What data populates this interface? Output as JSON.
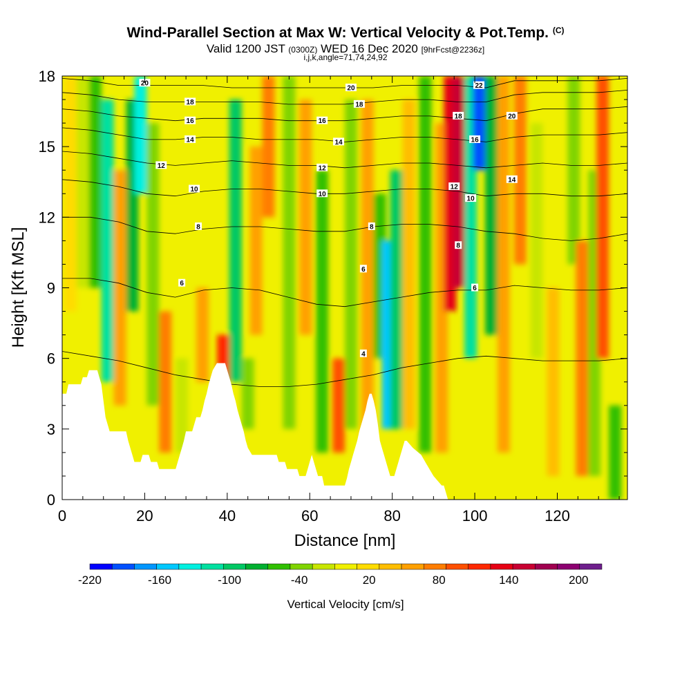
{
  "title": {
    "main": "Wind-Parallel Section at Max W: Vertical Velocity & Pot.Temp.",
    "copyright": "(C)",
    "valid_prefix": "Valid 1200 JST",
    "valid_zulu": "(0300Z)",
    "valid_date": "WED 16 Dec 2020",
    "forecast": "[9hrFcst@2236z]",
    "params": "i,j,k,angle=71,74,24,92"
  },
  "chart_data": {
    "type": "heatmap",
    "xlabel": "Distance [nm]",
    "ylabel": "Height [Kft MSL]",
    "xlim": [
      0,
      137
    ],
    "ylim": [
      0,
      18
    ],
    "x_ticks": [
      0,
      20,
      40,
      60,
      80,
      100,
      120
    ],
    "y_ticks": [
      0,
      3,
      6,
      9,
      12,
      15,
      18
    ],
    "colorbar": {
      "label": "Vertical Velocity [cm/s]",
      "range": [
        -220,
        220
      ],
      "tick_values": [
        -220,
        -160,
        -100,
        -40,
        20,
        80,
        140,
        200
      ],
      "tick_labels": [
        "-220",
        "-160",
        "-100",
        "-40",
        "20",
        "80",
        "140",
        "200"
      ],
      "colors": [
        "#0000ff",
        "#0050ff",
        "#0096ff",
        "#00c8ff",
        "#00f0e0",
        "#00e0a0",
        "#00c864",
        "#00b030",
        "#30c000",
        "#80d400",
        "#c8e600",
        "#f0f000",
        "#ffdc00",
        "#ffbe00",
        "#ffa000",
        "#ff7d00",
        "#ff5000",
        "#ff2800",
        "#e60014",
        "#c80032",
        "#a00050",
        "#8c0070",
        "#6e1e8c"
      ]
    },
    "vertical_velocity_columns": [
      {
        "x": 2,
        "w": 25,
        "top": 18,
        "bottom": 8
      },
      {
        "x": 5,
        "w": -20,
        "top": 18,
        "bottom": 9
      },
      {
        "x": 8,
        "w": -60,
        "top": 18,
        "bottom": 9
      },
      {
        "x": 11,
        "w": -110,
        "top": 17,
        "bottom": 5
      },
      {
        "x": 14,
        "w": 50,
        "top": 14,
        "bottom": 4
      },
      {
        "x": 17,
        "w": -70,
        "top": 17,
        "bottom": 8
      },
      {
        "x": 19,
        "w": -130,
        "top": 18,
        "bottom": 13
      },
      {
        "x": 22,
        "w": -40,
        "top": 16,
        "bottom": 4
      },
      {
        "x": 25,
        "w": 70,
        "top": 8,
        "bottom": 2
      },
      {
        "x": 29,
        "w": -20,
        "top": 6,
        "bottom": 2
      },
      {
        "x": 34,
        "w": 60,
        "top": 9,
        "bottom": 5
      },
      {
        "x": 39,
        "w": 120,
        "top": 7,
        "bottom": 5
      },
      {
        "x": 42,
        "w": -90,
        "top": 17,
        "bottom": 5
      },
      {
        "x": 45,
        "w": -40,
        "top": 6,
        "bottom": 3
      },
      {
        "x": 47,
        "w": 60,
        "top": 15,
        "bottom": 7
      },
      {
        "x": 50,
        "w": 80,
        "top": 18,
        "bottom": 12
      },
      {
        "x": 55,
        "w": -30,
        "top": 18,
        "bottom": 3
      },
      {
        "x": 59,
        "w": 60,
        "top": 17,
        "bottom": 7
      },
      {
        "x": 63,
        "w": -60,
        "top": 14,
        "bottom": 2
      },
      {
        "x": 67,
        "w": 90,
        "top": 6,
        "bottom": 2
      },
      {
        "x": 70,
        "w": -30,
        "top": 17,
        "bottom": 3
      },
      {
        "x": 74,
        "w": 50,
        "top": 17,
        "bottom": 2
      },
      {
        "x": 77,
        "w": -50,
        "top": 13,
        "bottom": 6
      },
      {
        "x": 79,
        "w": -160,
        "top": 11,
        "bottom": 3
      },
      {
        "x": 81,
        "w": -100,
        "top": 14,
        "bottom": 3
      },
      {
        "x": 84,
        "w": 40,
        "top": 17,
        "bottom": 3
      },
      {
        "x": 88,
        "w": -50,
        "top": 18,
        "bottom": 2
      },
      {
        "x": 92,
        "w": 60,
        "top": 16,
        "bottom": 2
      },
      {
        "x": 94,
        "w": 130,
        "top": 18,
        "bottom": 8
      },
      {
        "x": 96,
        "w": 160,
        "top": 18,
        "bottom": 9
      },
      {
        "x": 99,
        "w": -120,
        "top": 18,
        "bottom": 6
      },
      {
        "x": 101,
        "w": -200,
        "top": 18,
        "bottom": 14
      },
      {
        "x": 104,
        "w": -70,
        "top": 18,
        "bottom": 7
      },
      {
        "x": 107,
        "w": 50,
        "top": 18,
        "bottom": 2
      },
      {
        "x": 111,
        "w": 80,
        "top": 18,
        "bottom": 10
      },
      {
        "x": 115,
        "w": -20,
        "top": 16,
        "bottom": 6
      },
      {
        "x": 119,
        "w": 40,
        "top": 9,
        "bottom": 1
      },
      {
        "x": 124,
        "w": -40,
        "top": 18,
        "bottom": 10
      },
      {
        "x": 126,
        "w": 80,
        "top": 11,
        "bottom": 1
      },
      {
        "x": 129,
        "w": -30,
        "top": 14,
        "bottom": 1
      },
      {
        "x": 131,
        "w": 100,
        "top": 18,
        "bottom": 6
      },
      {
        "x": 134,
        "w": -60,
        "top": 4,
        "bottom": 0
      }
    ],
    "terrain": [
      [
        0,
        4.5
      ],
      [
        1,
        4.5
      ],
      [
        1.5,
        4.9
      ],
      [
        4.5,
        4.9
      ],
      [
        5,
        5.2
      ],
      [
        6,
        5.2
      ],
      [
        6.5,
        5.5
      ],
      [
        8.5,
        5.5
      ],
      [
        9,
        5.2
      ],
      [
        9.5,
        4.9
      ],
      [
        10,
        4.2
      ],
      [
        10.5,
        3.5
      ],
      [
        11,
        3.2
      ],
      [
        11.5,
        2.9
      ],
      [
        15.5,
        2.9
      ],
      [
        16,
        2.5
      ],
      [
        16.5,
        2.2
      ],
      [
        17,
        1.9
      ],
      [
        17.5,
        1.6
      ],
      [
        19,
        1.6
      ],
      [
        19.5,
        1.9
      ],
      [
        21,
        1.9
      ],
      [
        21.5,
        1.6
      ],
      [
        23,
        1.6
      ],
      [
        23.5,
        1.3
      ],
      [
        27.5,
        1.3
      ],
      [
        28,
        1.6
      ],
      [
        28.5,
        1.9
      ],
      [
        29,
        2.2
      ],
      [
        29.5,
        2.5
      ],
      [
        30,
        2.9
      ],
      [
        31.5,
        2.9
      ],
      [
        32,
        3.2
      ],
      [
        32.5,
        3.5
      ],
      [
        33.5,
        3.5
      ],
      [
        34,
        3.8
      ],
      [
        34.5,
        4.2
      ],
      [
        35,
        4.5
      ],
      [
        35.5,
        4.9
      ],
      [
        36,
        5.2
      ],
      [
        36.5,
        5.5
      ],
      [
        37.5,
        5.8
      ],
      [
        39.5,
        5.8
      ],
      [
        40,
        5.5
      ],
      [
        40.5,
        5.2
      ],
      [
        41,
        4.9
      ],
      [
        41.5,
        4.5
      ],
      [
        42,
        4.2
      ],
      [
        42.5,
        3.8
      ],
      [
        43,
        3.5
      ],
      [
        43.5,
        3.2
      ],
      [
        44,
        2.9
      ],
      [
        44.5,
        2.5
      ],
      [
        45,
        2.2
      ],
      [
        46,
        1.9
      ],
      [
        52,
        1.9
      ],
      [
        52.5,
        1.6
      ],
      [
        54,
        1.6
      ],
      [
        54.5,
        1.3
      ],
      [
        57,
        1.3
      ],
      [
        57.5,
        1.0
      ],
      [
        59,
        1.0
      ],
      [
        59.5,
        1.3
      ],
      [
        60,
        1.6
      ],
      [
        60.5,
        1.9
      ],
      [
        61,
        1.6
      ],
      [
        61.5,
        1.3
      ],
      [
        62,
        1.0
      ],
      [
        63,
        1.0
      ],
      [
        63.5,
        0.6
      ],
      [
        68.5,
        0.6
      ],
      [
        69,
        0.9
      ],
      [
        69.5,
        1.3
      ],
      [
        70,
        1.6
      ],
      [
        70.5,
        1.9
      ],
      [
        71,
        2.2
      ],
      [
        71.5,
        2.5
      ],
      [
        72,
        2.9
      ],
      [
        72.5,
        3.2
      ],
      [
        73,
        3.5
      ],
      [
        73.5,
        3.8
      ],
      [
        74,
        4.2
      ],
      [
        74.5,
        4.5
      ],
      [
        75,
        4.5
      ],
      [
        75.5,
        4.2
      ],
      [
        76,
        3.8
      ],
      [
        76.5,
        3.2
      ],
      [
        77,
        2.5
      ],
      [
        77.5,
        2.2
      ],
      [
        78,
        1.9
      ],
      [
        78.5,
        1.6
      ],
      [
        79,
        1.3
      ],
      [
        79.5,
        1.0
      ],
      [
        80.5,
        1.0
      ],
      [
        81,
        1.3
      ],
      [
        81.5,
        1.6
      ],
      [
        82,
        1.9
      ],
      [
        82.5,
        2.2
      ],
      [
        83,
        2.5
      ],
      [
        83.5,
        2.5
      ],
      [
        85,
        2.2
      ],
      [
        87,
        1.9
      ],
      [
        88,
        1.6
      ],
      [
        89,
        1.3
      ],
      [
        90,
        1.0
      ],
      [
        91,
        0.8
      ],
      [
        92,
        0.6
      ],
      [
        92.5,
        0.6
      ],
      [
        93,
        0.3
      ],
      [
        93.5,
        0
      ],
      [
        137,
        0
      ]
    ],
    "potential_temperature_contours": [
      {
        "label": "4",
        "y": [
          6.3,
          6.1,
          5.9,
          5.6,
          5.3,
          5.1,
          4.9,
          4.8,
          4.8,
          4.9,
          5.1,
          5.3,
          5.6,
          5.8,
          6.0,
          6.1,
          6.0,
          5.9,
          5.9,
          5.9,
          6.0
        ]
      },
      {
        "label": "6",
        "y": [
          9.4,
          9.4,
          9.2,
          8.8,
          8.6,
          8.9,
          9.0,
          8.9,
          8.6,
          8.3,
          8.2,
          8.4,
          8.6,
          8.8,
          8.9,
          8.9,
          9.1,
          9.0,
          8.9,
          8.9,
          9.0
        ]
      },
      {
        "label": "8",
        "y": [
          12.0,
          12.0,
          11.8,
          11.4,
          11.3,
          11.5,
          11.6,
          11.6,
          11.5,
          11.4,
          11.4,
          11.6,
          11.7,
          11.7,
          11.6,
          11.4,
          11.3,
          11.1,
          11.0,
          11.1,
          11.3
        ]
      },
      {
        "label": "10",
        "y": [
          13.6,
          13.5,
          13.3,
          13.0,
          12.9,
          13.1,
          13.2,
          13.2,
          13.1,
          13.0,
          13.0,
          13.1,
          13.2,
          13.2,
          13.1,
          12.9,
          13.0,
          13.0,
          12.9,
          12.9,
          13.0
        ]
      },
      {
        "label": "12",
        "y": [
          14.8,
          14.7,
          14.5,
          14.3,
          14.2,
          14.3,
          14.4,
          14.3,
          14.2,
          14.2,
          14.1,
          14.2,
          14.3,
          14.3,
          14.2,
          14.1,
          14.2,
          14.3,
          14.2,
          14.2,
          14.3
        ]
      },
      {
        "label": "14",
        "y": [
          15.8,
          15.7,
          15.5,
          15.3,
          15.3,
          15.4,
          15.4,
          15.3,
          15.3,
          15.3,
          15.2,
          15.3,
          15.4,
          15.4,
          15.3,
          15.2,
          15.4,
          15.5,
          15.5,
          15.5,
          15.6
        ]
      },
      {
        "label": "16",
        "y": [
          16.6,
          16.5,
          16.3,
          16.2,
          16.1,
          16.2,
          16.2,
          16.2,
          16.1,
          16.1,
          16.1,
          16.2,
          16.3,
          16.3,
          16.2,
          16.1,
          16.4,
          16.6,
          16.6,
          16.6,
          16.7
        ]
      },
      {
        "label": "18",
        "y": [
          17.3,
          17.2,
          17.0,
          16.9,
          16.9,
          16.9,
          16.9,
          16.9,
          16.8,
          16.8,
          16.8,
          16.9,
          17.0,
          17.0,
          16.9,
          16.9,
          17.2,
          17.3,
          17.3,
          17.3,
          17.4
        ]
      },
      {
        "label": "20",
        "y": [
          17.9,
          17.8,
          17.6,
          17.6,
          17.6,
          17.6,
          17.5,
          17.5,
          17.5,
          17.5,
          17.5,
          17.5,
          17.6,
          17.6,
          17.6,
          17.5,
          17.8,
          17.8,
          17.8,
          17.8,
          17.9
        ]
      }
    ],
    "contour_labels": [
      {
        "text": "20",
        "x": 20,
        "y": 17.7
      },
      {
        "text": "18",
        "x": 31,
        "y": 16.9
      },
      {
        "text": "16",
        "x": 31,
        "y": 16.1
      },
      {
        "text": "14",
        "x": 31,
        "y": 15.3
      },
      {
        "text": "12",
        "x": 24,
        "y": 14.2
      },
      {
        "text": "10",
        "x": 32,
        "y": 13.2
      },
      {
        "text": "8",
        "x": 33,
        "y": 11.6
      },
      {
        "text": "6",
        "x": 29,
        "y": 9.2
      },
      {
        "text": "20",
        "x": 70,
        "y": 17.5
      },
      {
        "text": "18",
        "x": 72,
        "y": 16.8
      },
      {
        "text": "16",
        "x": 63,
        "y": 16.1
      },
      {
        "text": "14",
        "x": 67,
        "y": 15.2
      },
      {
        "text": "12",
        "x": 63,
        "y": 14.1
      },
      {
        "text": "10",
        "x": 63,
        "y": 13.0
      },
      {
        "text": "8",
        "x": 75,
        "y": 11.6
      },
      {
        "text": "6",
        "x": 73,
        "y": 9.8
      },
      {
        "text": "4",
        "x": 73,
        "y": 6.2
      },
      {
        "text": "22",
        "x": 101,
        "y": 17.6
      },
      {
        "text": "18",
        "x": 96,
        "y": 16.3
      },
      {
        "text": "16",
        "x": 100,
        "y": 15.3
      },
      {
        "text": "20",
        "x": 109,
        "y": 16.3
      },
      {
        "text": "14",
        "x": 109,
        "y": 13.6
      },
      {
        "text": "12",
        "x": 95,
        "y": 13.3
      },
      {
        "text": "10",
        "x": 99,
        "y": 12.8
      },
      {
        "text": "8",
        "x": 96,
        "y": 10.8
      },
      {
        "text": "6",
        "x": 100,
        "y": 9.0
      }
    ]
  }
}
